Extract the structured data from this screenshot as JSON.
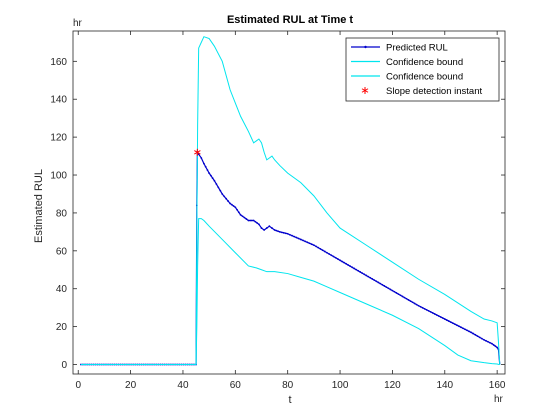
{
  "chart_data": {
    "type": "line",
    "title": "Estimated RUL at Time t",
    "xlabel": "t",
    "ylabel": "Estimated RUL",
    "x_unit": "hr",
    "y_unit": "hr",
    "xlim": [
      -2,
      163
    ],
    "ylim": [
      -5,
      176
    ],
    "xticks": [
      0,
      20,
      40,
      60,
      80,
      100,
      120,
      140,
      160
    ],
    "yticks": [
      0,
      20,
      40,
      60,
      80,
      100,
      120,
      140,
      160
    ],
    "grid": false,
    "legend_position": "top-right",
    "series": [
      {
        "name": "Predicted RUL",
        "color": "#0000cc",
        "marker": "dot",
        "x": [
          1,
          45,
          45.3,
          45.5,
          46,
          47,
          48,
          50,
          52,
          55,
          58,
          60,
          62,
          65,
          67,
          69,
          70,
          71,
          72,
          73,
          74,
          75,
          77,
          80,
          85,
          90,
          95,
          100,
          110,
          120,
          130,
          140,
          150,
          155,
          158,
          160,
          160.5,
          161
        ],
        "y": [
          0,
          0,
          84,
          112,
          111,
          109,
          106,
          101,
          97,
          90,
          85,
          83,
          79,
          76,
          76,
          74,
          72,
          71,
          72,
          73,
          72,
          71,
          70,
          69,
          66,
          63,
          59,
          55,
          47,
          39,
          31,
          24,
          17,
          13,
          11,
          9,
          8,
          0
        ]
      },
      {
        "name": "Confidence bound",
        "color": "#00e5ee",
        "x": [
          1,
          45,
          45.3,
          45.6,
          46,
          47,
          48,
          50,
          52,
          55,
          58,
          60,
          62,
          65,
          67,
          68,
          69,
          70,
          71,
          72,
          73,
          74,
          75,
          77,
          80,
          85,
          90,
          95,
          100,
          110,
          120,
          130,
          140,
          150,
          155,
          158,
          160,
          160.5,
          161
        ],
        "y": [
          0,
          0,
          70,
          126,
          167,
          170,
          173,
          172,
          168,
          160,
          145,
          138,
          131,
          123,
          117,
          118,
          119,
          117,
          112,
          108,
          109,
          110,
          108,
          105,
          101,
          96,
          89,
          80,
          72,
          63,
          54,
          45,
          37,
          28,
          24,
          23,
          22,
          12,
          0
        ]
      },
      {
        "name": "Confidence bound",
        "color": "#00e5ee",
        "x": [
          1,
          45,
          45.3,
          45.6,
          46,
          47,
          48,
          50,
          55,
          60,
          65,
          68,
          70,
          72,
          75,
          80,
          85,
          90,
          95,
          100,
          110,
          120,
          130,
          140,
          145,
          150,
          155,
          158,
          160,
          160.5,
          161
        ],
        "y": [
          0,
          0,
          20,
          52,
          77,
          77,
          76,
          73,
          66,
          59,
          52,
          51,
          50,
          49,
          49,
          48,
          46,
          44,
          41,
          38,
          32,
          26,
          19,
          10,
          5,
          2,
          1,
          0.5,
          0.3,
          0.1,
          0
        ]
      },
      {
        "name": "Slope detection instant",
        "color": "#ff0000",
        "marker": "asterisk",
        "x": [
          45.5
        ],
        "y": [
          112
        ]
      }
    ]
  }
}
